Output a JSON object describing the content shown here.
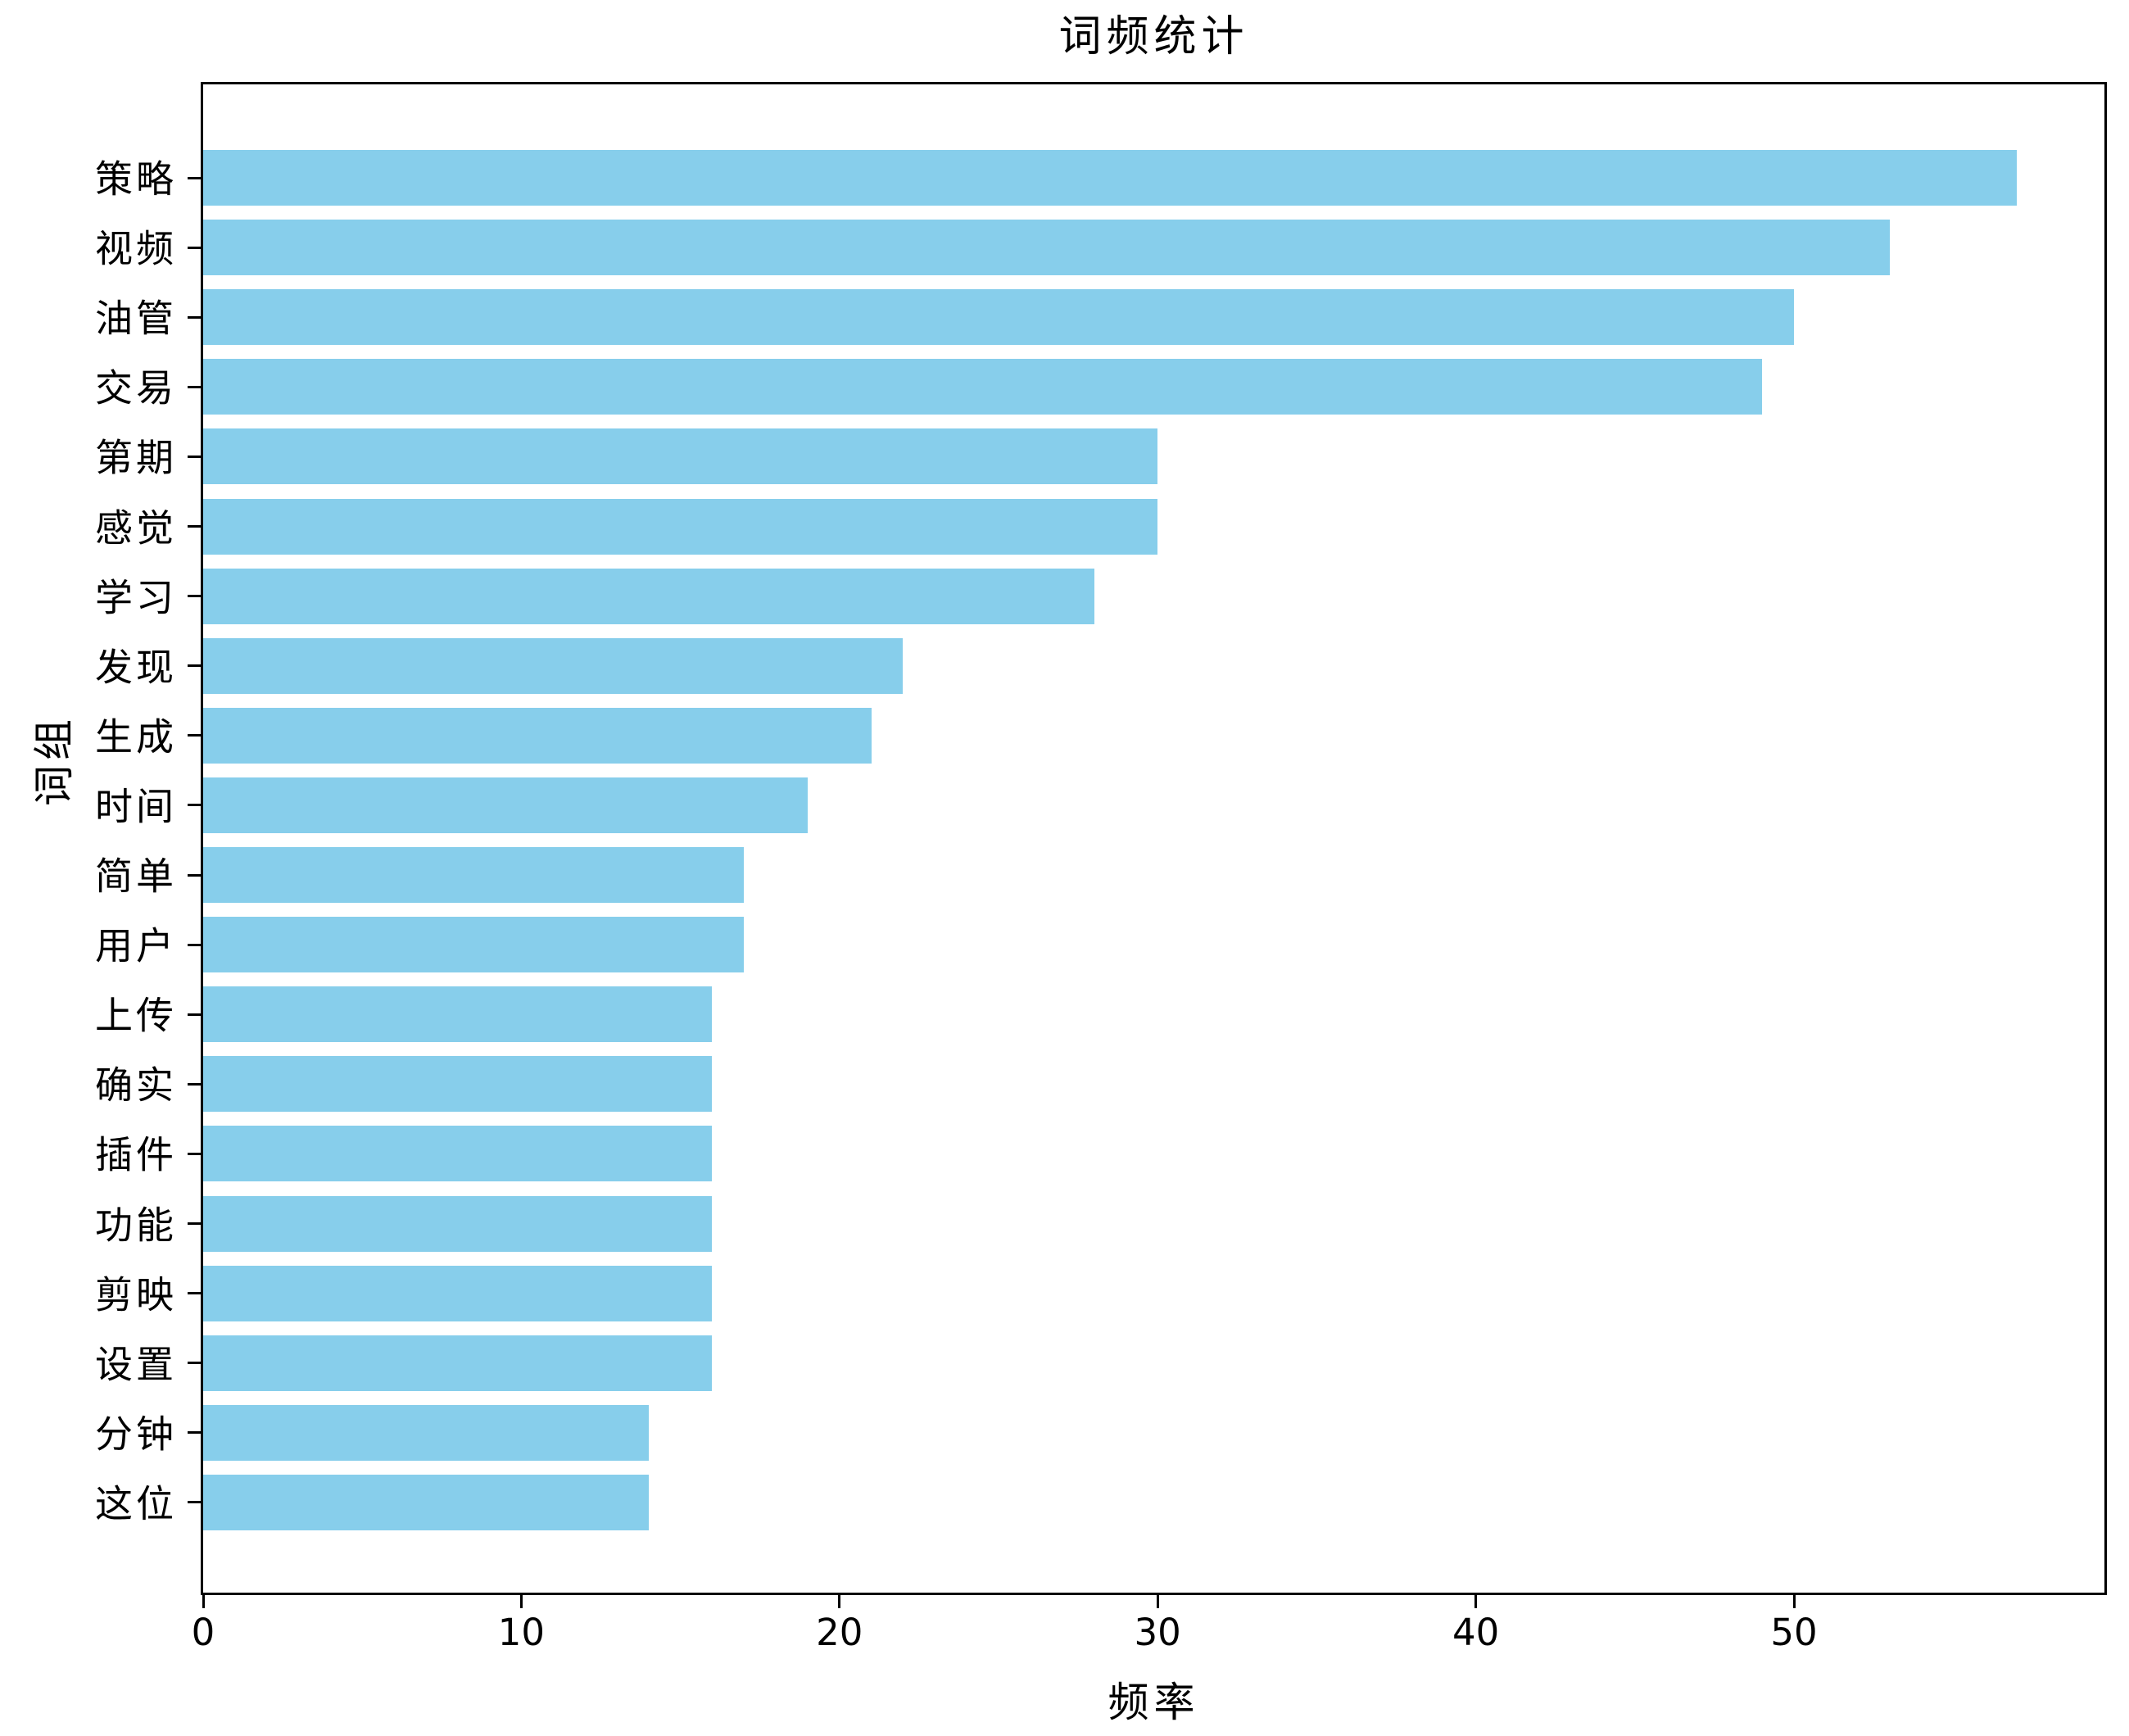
{
  "chart_data": {
    "type": "bar",
    "orientation": "horizontal",
    "title": "词频统计",
    "xlabel": "频率",
    "ylabel": "词组",
    "categories": [
      "策略",
      "视频",
      "油管",
      "交易",
      "第期",
      "感觉",
      "学习",
      "发现",
      "生成",
      "时间",
      "简单",
      "用户",
      "上传",
      "确实",
      "插件",
      "功能",
      "剪映",
      "设置",
      "分钟",
      "这位"
    ],
    "values": [
      57,
      53,
      50,
      49,
      30,
      30,
      28,
      22,
      21,
      19,
      17,
      17,
      16,
      16,
      16,
      16,
      16,
      16,
      14,
      14
    ],
    "x_ticks": [
      0,
      10,
      20,
      30,
      40,
      50
    ],
    "xlim": [
      0,
      59.9
    ],
    "bar_color": "#87CEEB",
    "spine_color": "#000000",
    "grid": false,
    "legend": "none"
  }
}
